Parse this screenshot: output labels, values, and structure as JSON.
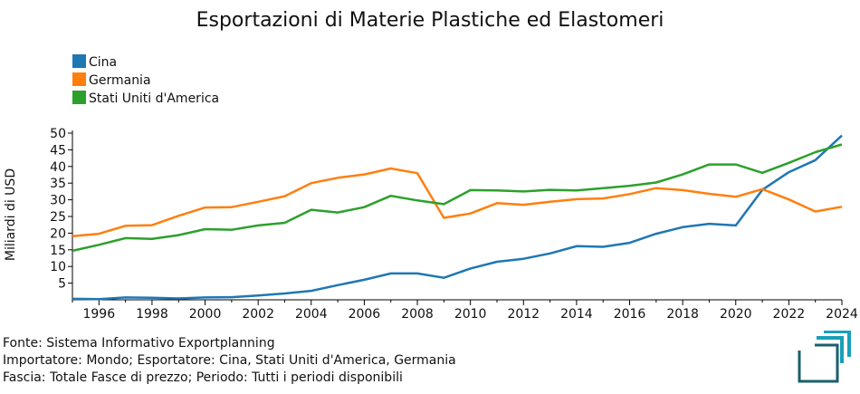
{
  "chart_data": {
    "type": "line",
    "title": "Esportazioni di Materie Plastiche ed Elastomeri",
    "ylabel": "Miliardi di USD",
    "xlabel": "",
    "xlim": [
      1995,
      2024
    ],
    "ylim": [
      0,
      50
    ],
    "x_ticks": [
      "1996",
      "1998",
      "2000",
      "2002",
      "2004",
      "2006",
      "2008",
      "2010",
      "2012",
      "2014",
      "2016",
      "2018",
      "2020",
      "2022",
      "2024"
    ],
    "y_ticks": [
      "5",
      "10",
      "15",
      "20",
      "25",
      "30",
      "35",
      "40",
      "45",
      "50"
    ],
    "legend_position": "top-left",
    "grid": false,
    "x": [
      1995,
      1996,
      1997,
      1998,
      1999,
      2000,
      2001,
      2002,
      2003,
      2004,
      2005,
      2006,
      2007,
      2008,
      2009,
      2010,
      2011,
      2012,
      2013,
      2014,
      2015,
      2016,
      2017,
      2018,
      2019,
      2020,
      2021,
      2022,
      2023,
      2024
    ],
    "series": [
      {
        "name": "Cina",
        "color": "#1f77b4",
        "values": [
          0.3,
          0.2,
          0.7,
          0.6,
          0.4,
          0.7,
          0.8,
          1.3,
          1.9,
          2.7,
          4.4,
          6.0,
          7.9,
          7.9,
          6.6,
          9.4,
          11.4,
          12.3,
          13.9,
          16.1,
          15.9,
          17.1,
          19.8,
          21.8,
          22.8,
          22.3,
          33.0,
          38.3,
          41.9,
          49.3
        ]
      },
      {
        "name": "Germania",
        "color": "#ff7f0e",
        "values": [
          19.1,
          19.8,
          22.2,
          22.4,
          25.2,
          27.7,
          27.8,
          29.4,
          31.1,
          35.0,
          36.6,
          37.6,
          39.4,
          38.0,
          24.6,
          25.9,
          29.0,
          28.5,
          29.4,
          30.2,
          30.4,
          31.7,
          33.5,
          32.9,
          31.8,
          30.9,
          33.2,
          30.1,
          26.5,
          27.9
        ]
      },
      {
        "name": "Stati Uniti d'America",
        "color": "#2ca02c",
        "values": [
          14.7,
          16.5,
          18.5,
          18.3,
          19.4,
          21.2,
          21.0,
          22.3,
          23.1,
          27.0,
          26.2,
          27.8,
          31.2,
          29.8,
          28.7,
          32.9,
          32.8,
          32.5,
          33.0,
          32.8,
          33.5,
          34.2,
          35.2,
          37.6,
          40.6,
          40.6,
          38.1,
          41.1,
          44.3,
          46.6
        ]
      }
    ]
  },
  "footer": {
    "source": "Fonte: Sistema Informativo Exportplanning",
    "importer": "Importatore: Mondo; Esportatore: Cina, Stati Uniti d'America, Germania",
    "range": "Fascia: Totale Fasce di prezzo; Periodo: Tutti i periodi disponibili"
  },
  "logo": {
    "name": "exportplanning-logo-icon",
    "color": "#1a5f6e",
    "accent": "#1aa0b8"
  }
}
